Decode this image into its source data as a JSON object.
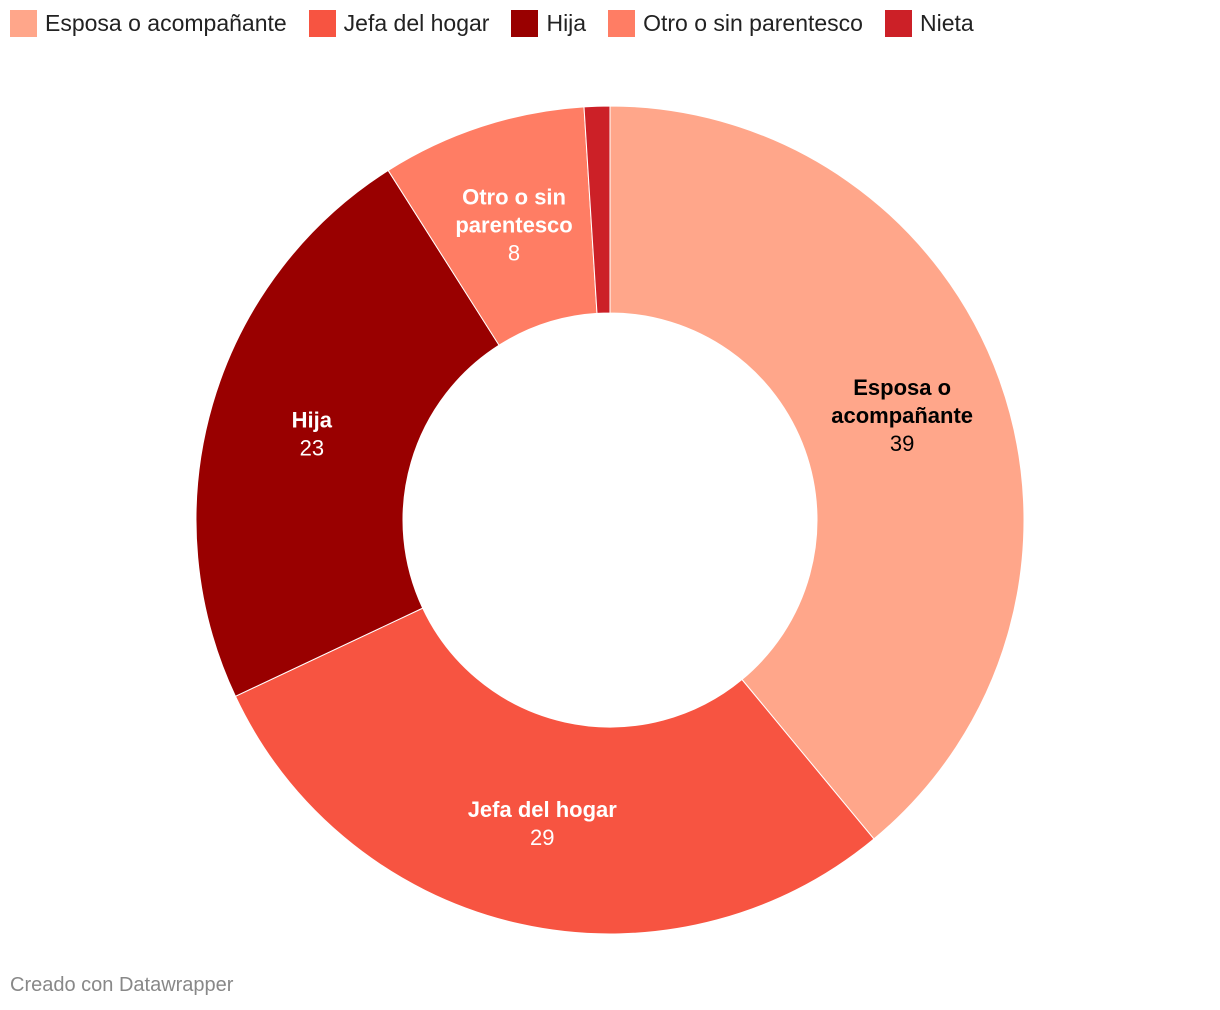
{
  "chart_data": {
    "type": "pie",
    "donut": true,
    "legend_position": "top",
    "title": "",
    "categories": [
      "Esposa o acompañante",
      "Jefa del hogar",
      "Hija",
      "Otro o sin parentesco",
      "Nieta"
    ],
    "values": [
      39,
      29,
      23,
      8,
      1
    ],
    "value_labels": [
      "39",
      "29",
      "23",
      "8",
      ""
    ],
    "slice_labels": [
      [
        "Esposa o",
        "acompañante"
      ],
      [
        "Jefa del hogar"
      ],
      [
        "Hija"
      ],
      [
        "Otro o sin",
        "parentesco"
      ],
      []
    ],
    "colors": [
      "#ffa68a",
      "#f75441",
      "#990000",
      "#ff7d64",
      "#cc2027"
    ],
    "label_colors": [
      "#000000",
      "#ffffff",
      "#ffffff",
      "#ffffff",
      "#ffffff"
    ]
  },
  "footer": {
    "credit": "Creado con Datawrapper"
  }
}
